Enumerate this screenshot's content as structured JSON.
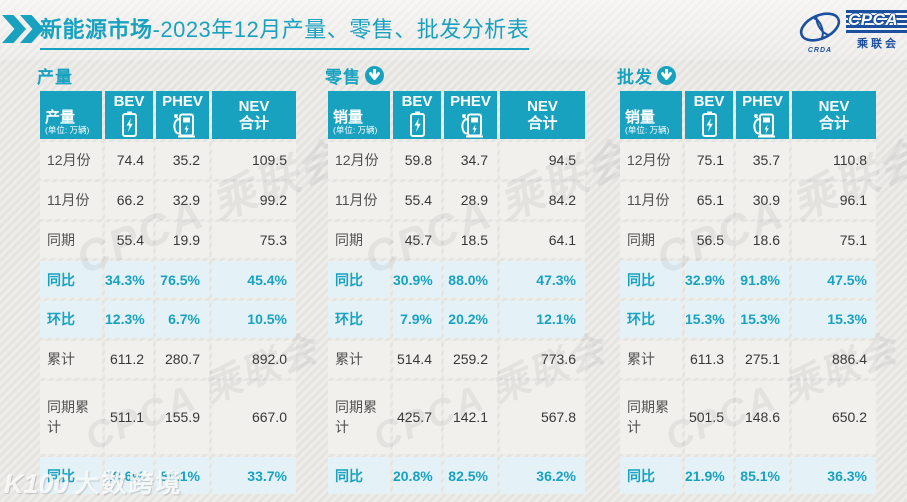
{
  "page": {
    "title_bold": "新能源市场",
    "title_rest": "-2023年12月产量、零售、批发分析表",
    "logo": {
      "cpca": "CPCA",
      "crda": "CRDA",
      "association": "乘联会"
    },
    "ghost_watermark": "CPCA 乘联会",
    "brand_watermark_logo": "K100",
    "brand_watermark_name": "大数跨境"
  },
  "colors": {
    "teal": "#18a2c0",
    "navy": "#1c4f9e",
    "percent_row_bg": "#e4f2f8",
    "normal_row_bg": "#f2f0ed"
  },
  "chart_data": [
    {
      "type": "table",
      "title": "产量",
      "first_col_header": "产量",
      "unit": "(单位: 万辆)",
      "col_bev": "BEV",
      "col_phev": "PHEV",
      "col_nev_line1": "NEV",
      "col_nev_line2": "合计",
      "rows": [
        {
          "label": "12月份",
          "values": [
            "74.4",
            "35.2",
            "109.5"
          ],
          "highlight": false
        },
        {
          "label": "11月份",
          "values": [
            "66.2",
            "32.9",
            "99.2"
          ],
          "highlight": false
        },
        {
          "label": "同期",
          "values": [
            "55.4",
            "19.9",
            "75.3"
          ],
          "highlight": false
        },
        {
          "label": "同比",
          "values": [
            "34.3%",
            "76.5%",
            "45.4%"
          ],
          "highlight": true
        },
        {
          "label": "环比",
          "values": [
            "12.3%",
            "6.7%",
            "10.5%"
          ],
          "highlight": true
        },
        {
          "label": "累计",
          "values": [
            "611.2",
            "280.7",
            "892.0"
          ],
          "highlight": false
        },
        {
          "label": "同期累计",
          "values": [
            "511.1",
            "155.9",
            "667.0"
          ],
          "highlight": false
        },
        {
          "label": "同比",
          "values": [
            "19.6%",
            "80.1%",
            "33.7%"
          ],
          "highlight": true
        }
      ]
    },
    {
      "type": "table",
      "title": "零售",
      "first_col_header": "销量",
      "unit": "(单位: 万辆)",
      "col_bev": "BEV",
      "col_phev": "PHEV",
      "col_nev_line1": "NEV",
      "col_nev_line2": "合计",
      "rows": [
        {
          "label": "12月份",
          "values": [
            "59.8",
            "34.7",
            "94.5"
          ],
          "highlight": false
        },
        {
          "label": "11月份",
          "values": [
            "55.4",
            "28.9",
            "84.2"
          ],
          "highlight": false
        },
        {
          "label": "同期",
          "values": [
            "45.7",
            "18.5",
            "64.1"
          ],
          "highlight": false
        },
        {
          "label": "同比",
          "values": [
            "30.9%",
            "88.0%",
            "47.3%"
          ],
          "highlight": true
        },
        {
          "label": "环比",
          "values": [
            "7.9%",
            "20.2%",
            "12.1%"
          ],
          "highlight": true
        },
        {
          "label": "累计",
          "values": [
            "514.4",
            "259.2",
            "773.6"
          ],
          "highlight": false
        },
        {
          "label": "同期累计",
          "values": [
            "425.7",
            "142.1",
            "567.8"
          ],
          "highlight": false
        },
        {
          "label": "同比",
          "values": [
            "20.8%",
            "82.5%",
            "36.2%"
          ],
          "highlight": true
        }
      ]
    },
    {
      "type": "table",
      "title": "批发",
      "first_col_header": "销量",
      "unit": "(单位: 万辆)",
      "col_bev": "BEV",
      "col_phev": "PHEV",
      "col_nev_line1": "NEV",
      "col_nev_line2": "合计",
      "rows": [
        {
          "label": "12月份",
          "values": [
            "75.1",
            "35.7",
            "110.8"
          ],
          "highlight": false
        },
        {
          "label": "11月份",
          "values": [
            "65.1",
            "30.9",
            "96.1"
          ],
          "highlight": false
        },
        {
          "label": "同期",
          "values": [
            "56.5",
            "18.6",
            "75.1"
          ],
          "highlight": false
        },
        {
          "label": "同比",
          "values": [
            "32.9%",
            "91.8%",
            "47.5%"
          ],
          "highlight": true
        },
        {
          "label": "环比",
          "values": [
            "15.3%",
            "15.3%",
            "15.3%"
          ],
          "highlight": true
        },
        {
          "label": "累计",
          "values": [
            "611.3",
            "275.1",
            "886.4"
          ],
          "highlight": false
        },
        {
          "label": "同期累计",
          "values": [
            "501.5",
            "148.6",
            "650.2"
          ],
          "highlight": false
        },
        {
          "label": "同比",
          "values": [
            "21.9%",
            "85.1%",
            "36.3%"
          ],
          "highlight": true
        }
      ]
    }
  ]
}
